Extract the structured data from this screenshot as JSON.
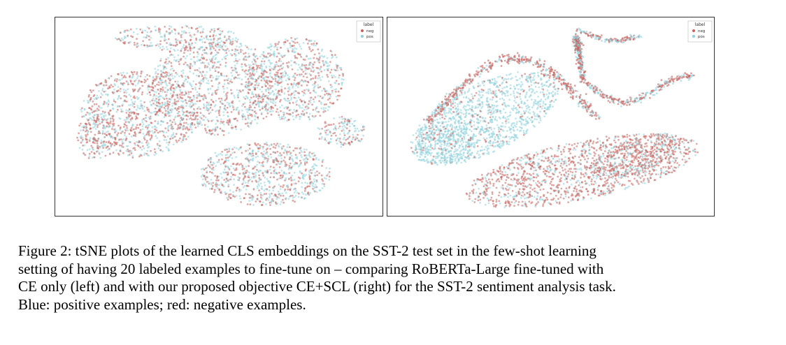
{
  "figure": {
    "caption_lines": [
      "Figure 2: tSNE plots of the learned CLS embeddings on the SST-2 test set in the few-shot learning",
      "setting of having 20 labeled examples to fine-tune on – comparing RoBERTa-Large fine-tuned with",
      "CE only (left) and with our proposed objective CE+SCL (right) for the SST-2 sentiment analysis task.",
      "Blue: positive examples; red: negative examples."
    ]
  },
  "chart_data": [
    {
      "type": "scatter",
      "title": "",
      "xlabel": "",
      "ylabel": "",
      "grid": false,
      "legend": {
        "title": "label",
        "placement": "top-right",
        "entries": [
          "neg",
          "pos"
        ]
      },
      "series": [
        {
          "name": "neg",
          "color": "#c9625d"
        },
        {
          "name": "pos",
          "color": "#8fd1dc"
        }
      ]
    },
    {
      "type": "scatter",
      "title": "",
      "xlabel": "",
      "ylabel": "",
      "grid": false,
      "legend": {
        "title": "label",
        "placement": "top-right",
        "entries": [
          "neg",
          "pos"
        ]
      },
      "series": [
        {
          "name": "neg",
          "color": "#c9625d"
        },
        {
          "name": "pos",
          "color": "#8fd1dc"
        }
      ]
    }
  ]
}
